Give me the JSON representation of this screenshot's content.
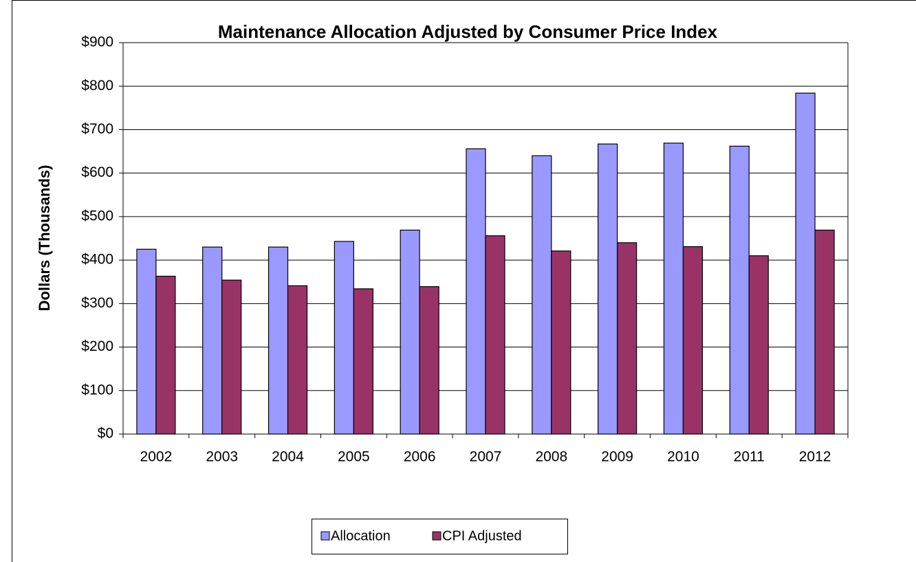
{
  "chart_data": {
    "type": "bar",
    "title": "Maintenance Allocation Adjusted by Consumer Price Index",
    "y_label": "Dollars (Thousands)",
    "categories": [
      "2002",
      "2003",
      "2004",
      "2005",
      "2006",
      "2007",
      "2008",
      "2009",
      "2010",
      "2011",
      "2012"
    ],
    "series": [
      {
        "name": "Allocation",
        "color": "#9999ff",
        "values": [
          425,
          430,
          430,
          443,
          469,
          656,
          640,
          667,
          669,
          662,
          784
        ]
      },
      {
        "name": "CPI Adjusted",
        "color": "#993366",
        "values": [
          363,
          354,
          341,
          334,
          339,
          456,
          421,
          440,
          431,
          410,
          469
        ]
      }
    ],
    "ylim": [
      0,
      900
    ],
    "yticks": [
      {
        "value": 0,
        "label": "$0"
      },
      {
        "value": 100,
        "label": "$100"
      },
      {
        "value": 200,
        "label": "$200"
      },
      {
        "value": 300,
        "label": "$300"
      },
      {
        "value": 400,
        "label": "$400"
      },
      {
        "value": 500,
        "label": "$500"
      },
      {
        "value": 600,
        "label": "$600"
      },
      {
        "value": 700,
        "label": "$700"
      },
      {
        "value": 800,
        "label": "$800"
      },
      {
        "value": 900,
        "label": "$900"
      }
    ],
    "grid": true
  }
}
